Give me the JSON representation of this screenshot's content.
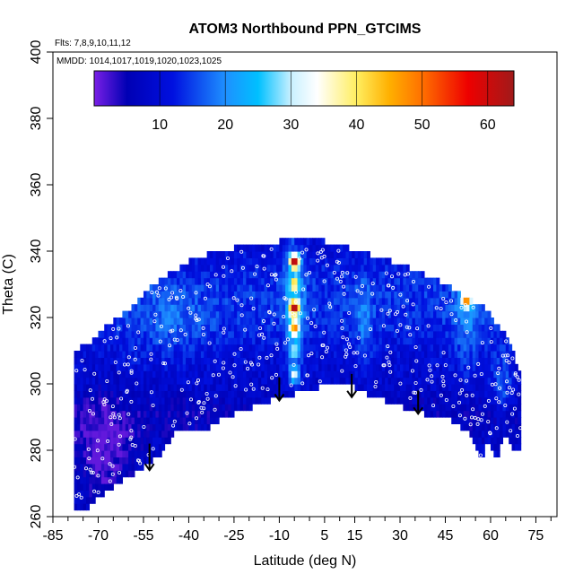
{
  "chart_data": {
    "type": "heatmap",
    "title": "ATOM3 Northbound PPN_GTCIMS",
    "annotations": [
      "Flts: 7,8,9,10,11,12",
      "MMDD: 1014,1017,1019,1020,1023,1025"
    ],
    "xlabel": "Latitude (deg N)",
    "ylabel": "Theta (C)",
    "xlim": [
      -85,
      82
    ],
    "ylim": [
      260,
      400
    ],
    "x_ticks": [
      -85,
      -70,
      -55,
      -40,
      -25,
      -10,
      5,
      15,
      30,
      45,
      60,
      75
    ],
    "x_tick_labels": [
      "-85",
      "-70",
      "-55",
      "-40",
      "-25",
      "-10",
      "5",
      "15",
      "30",
      "45",
      "60",
      "75"
    ],
    "y_ticks": [
      260,
      280,
      300,
      320,
      340,
      360,
      380,
      400
    ],
    "y_tick_labels": [
      "260",
      "280",
      "300",
      "320",
      "340",
      "360",
      "380",
      "400"
    ],
    "colorbar": {
      "range": [
        0,
        64
      ],
      "ticks": [
        10,
        20,
        30,
        40,
        50,
        60
      ],
      "tick_labels": [
        "10",
        "20",
        "30",
        "40",
        "50",
        "60"
      ],
      "stops": [
        {
          "v": 0,
          "c": "#7a1fe6"
        },
        {
          "v": 5,
          "c": "#0000b4"
        },
        {
          "v": 12,
          "c": "#0010e0"
        },
        {
          "v": 20,
          "c": "#1e90ff"
        },
        {
          "v": 25,
          "c": "#00c0ff"
        },
        {
          "v": 30,
          "c": "#c8f0ff"
        },
        {
          "v": 34,
          "c": "#ffffff"
        },
        {
          "v": 40,
          "c": "#ffee60"
        },
        {
          "v": 45,
          "c": "#ffb000"
        },
        {
          "v": 50,
          "c": "#ff7000"
        },
        {
          "v": 57,
          "c": "#ee0000"
        },
        {
          "v": 64,
          "c": "#a01a1a"
        }
      ]
    },
    "curtain_bottom": [
      [
        -73,
        263
      ],
      [
        -67,
        268
      ],
      [
        -50,
        278
      ],
      [
        -43,
        287
      ],
      [
        -37,
        285
      ],
      [
        -28,
        290
      ],
      [
        -13,
        295
      ],
      [
        5,
        299.5
      ],
      [
        11,
        301
      ],
      [
        18,
        297.5
      ],
      [
        28,
        294
      ],
      [
        38,
        291
      ],
      [
        45,
        290.5
      ],
      [
        53,
        285
      ],
      [
        57,
        276
      ],
      [
        59,
        283
      ],
      [
        62,
        277
      ],
      [
        65,
        286
      ],
      [
        67,
        281
      ]
    ],
    "curtain_top": [
      [
        -78,
        296
      ],
      [
        -78,
        310
      ],
      [
        -73,
        312
      ],
      [
        -67,
        318
      ],
      [
        -60,
        322
      ],
      [
        -52,
        330
      ],
      [
        -45,
        334
      ],
      [
        -38,
        338
      ],
      [
        -30,
        340
      ],
      [
        -20,
        342
      ],
      [
        -10,
        343
      ],
      [
        0,
        343
      ],
      [
        5,
        343
      ],
      [
        10,
        342
      ],
      [
        20,
        339
      ],
      [
        30,
        336
      ],
      [
        38,
        333
      ],
      [
        45,
        330
      ],
      [
        52,
        326
      ],
      [
        58,
        323
      ],
      [
        62,
        318
      ],
      [
        66,
        314
      ],
      [
        68,
        308
      ],
      [
        70,
        302
      ]
    ],
    "hotspots": [
      {
        "lat": -5,
        "theta": 337,
        "value": 60
      },
      {
        "lat": -5,
        "theta": 323,
        "value": 55
      },
      {
        "lat": -5,
        "theta": 317,
        "value": 40
      },
      {
        "lat": -5,
        "theta": 330,
        "value": 35
      },
      {
        "lat": 52,
        "theta": 325,
        "value": 45
      },
      {
        "lat": -5,
        "theta": 303,
        "value": 30
      },
      {
        "lat": -5,
        "theta": 310,
        "value": 28
      }
    ],
    "tropopause_arrows": [
      {
        "lat": -53,
        "theta_top": 282,
        "theta_tip": 274
      },
      {
        "lat": -10,
        "theta_top": 302,
        "theta_tip": 295
      },
      {
        "lat": 14,
        "theta_top": 303,
        "theta_tip": 296
      },
      {
        "lat": 36,
        "theta_top": 298,
        "theta_tip": 291
      }
    ]
  }
}
